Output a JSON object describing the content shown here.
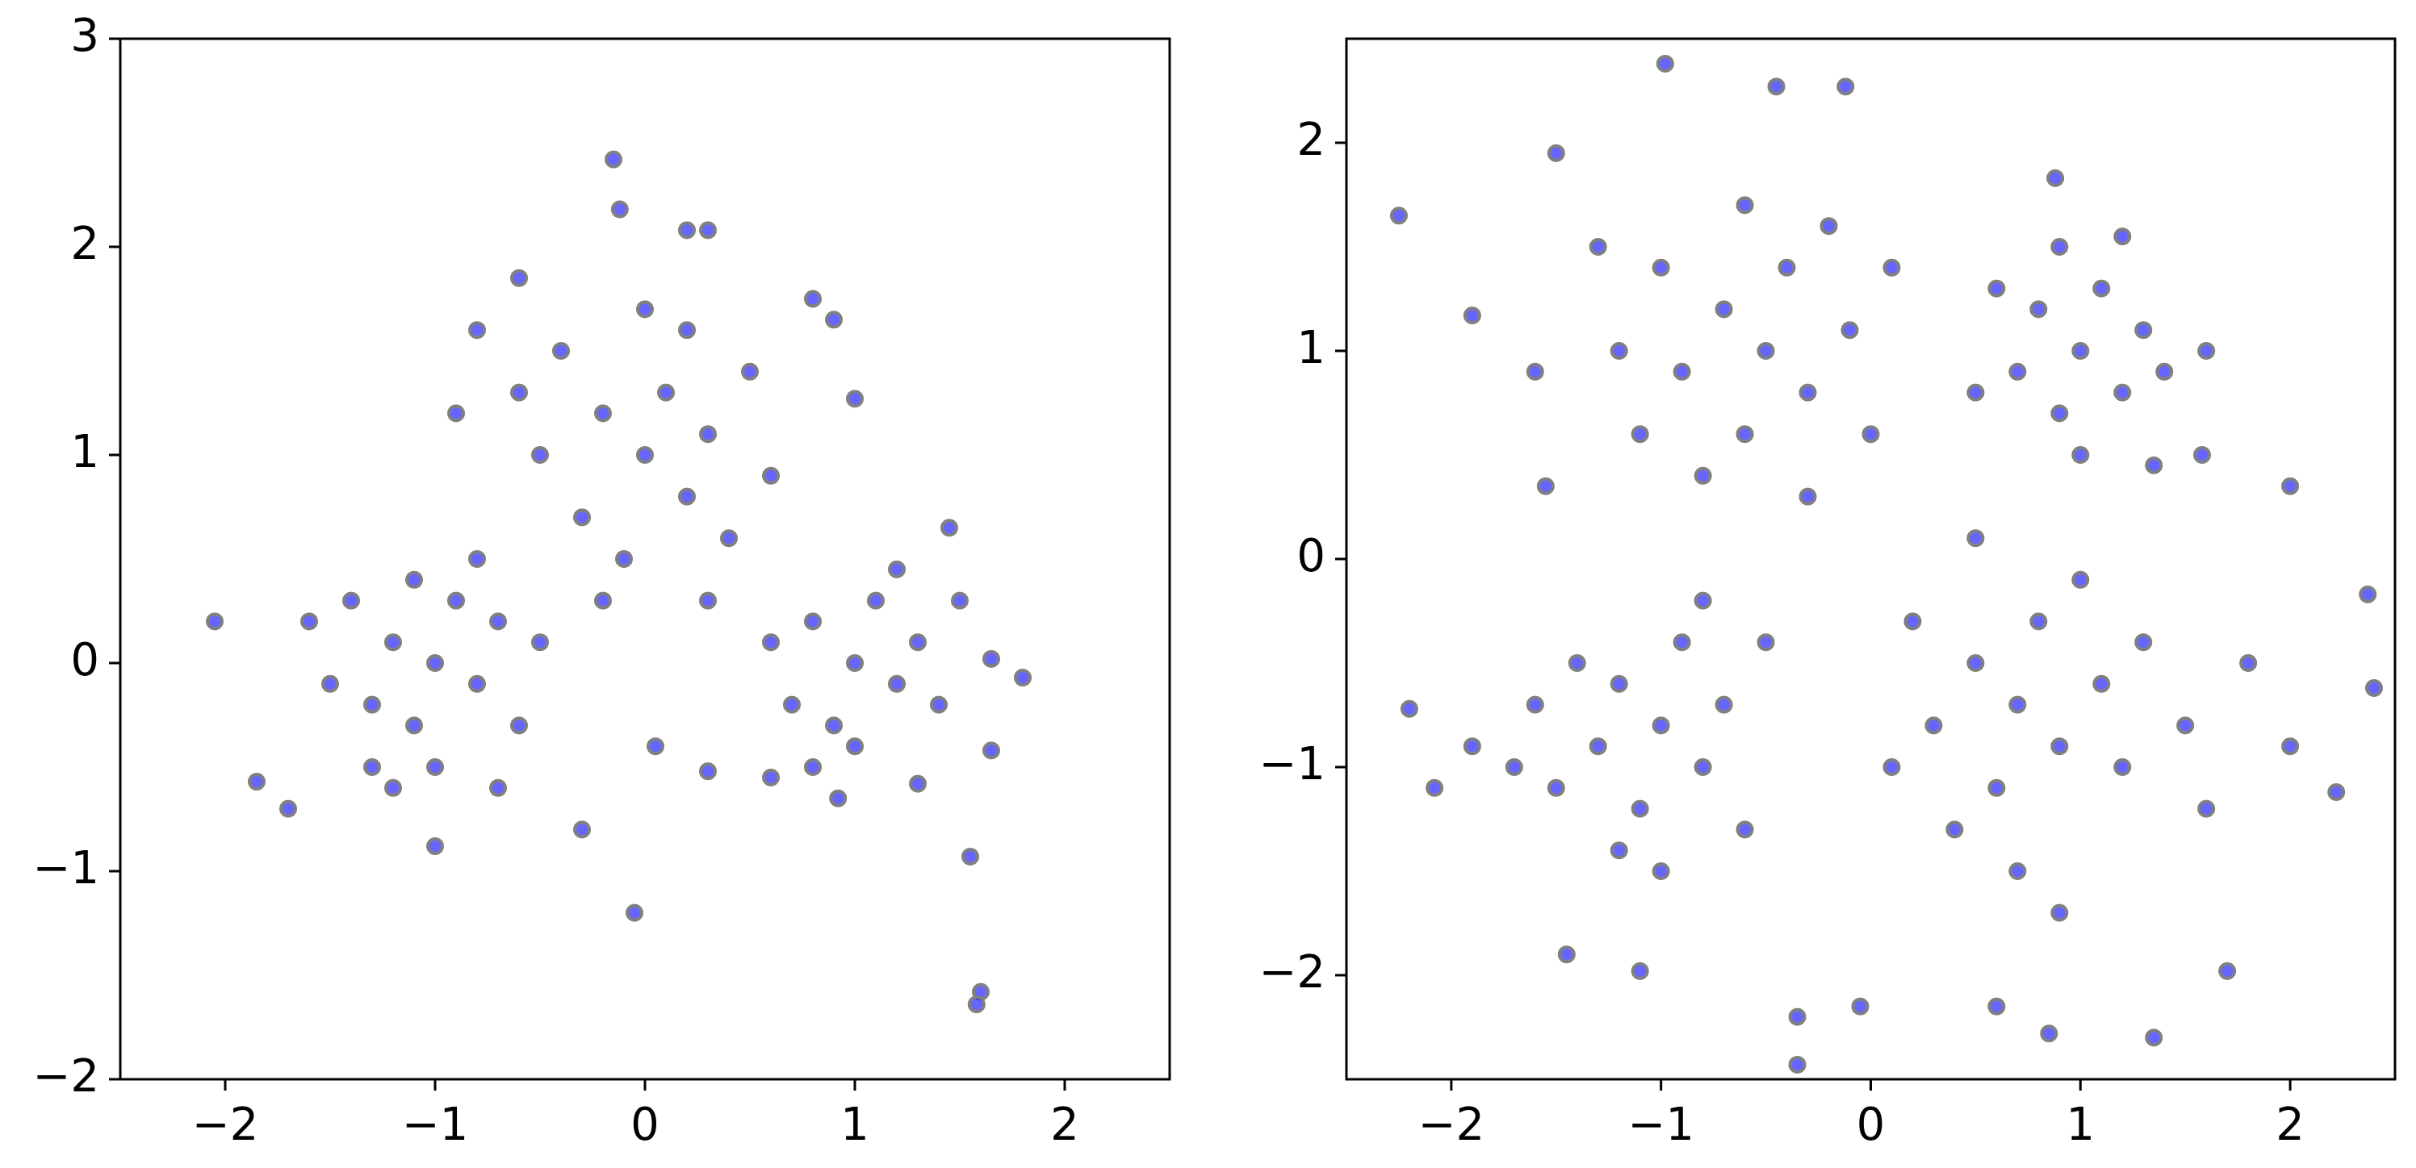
{
  "chart_data": [
    {
      "type": "scatter",
      "color": "#0000ff",
      "edgecolor": "#808080",
      "xlim": [
        -2.5,
        2.5
      ],
      "ylim": [
        -2,
        3
      ],
      "xticks": [
        {
          "value": -2,
          "label": "−2"
        },
        {
          "value": -1,
          "label": "−1"
        },
        0,
        1,
        2
      ],
      "yticks": [
        {
          "value": -2,
          "label": "−2"
        },
        {
          "value": -1,
          "label": "−1"
        },
        0,
        1,
        2,
        3
      ],
      "x": [
        -1.0,
        -1.2,
        -0.8,
        -1.1,
        -0.9,
        -1.3,
        -0.7,
        -1.4,
        -1.0,
        -0.6,
        -1.5,
        -1.2,
        -0.8,
        -1.1,
        -0.5,
        -1.6,
        -1.3,
        -0.7,
        -1.7,
        -1.0,
        -1.85,
        -0.3,
        0,
        -0.2,
        0.2,
        0.1,
        -0.3,
        0.3,
        -0.1,
        0.4,
        -0.5,
        0.5,
        -0.4,
        0.0,
        0.2,
        -0.6,
        0.6,
        -0.2,
        0.3,
        -0.8,
        0.8,
        -0.9,
        0.9,
        -0.12,
        0.2,
        0.3,
        -0.6,
        1.0,
        1,
        0.8,
        1.2,
        0.9,
        1.1,
        0.7,
        1.3,
        1.0,
        0.6,
        1.4,
        1.2,
        0.8,
        1.5,
        0.6,
        1.3,
        0.92,
        1.45,
        1.65,
        -0.05,
        1.6,
        1.58,
        1.55,
        -0.15,
        -2.05,
        1.8,
        1.65,
        0.05,
        0.3
      ],
      "y": [
        0.0,
        0.1,
        -0.1,
        -0.3,
        0.3,
        -0.2,
        0.2,
        0.3,
        -0.5,
        -0.3,
        -0.1,
        -0.6,
        0.5,
        0.4,
        0.1,
        0.2,
        -0.5,
        -0.6,
        -0.7,
        -0.88,
        -0.57,
        -0.8,
        1,
        1.2,
        0.8,
        1.3,
        0.7,
        1.1,
        0.5,
        0.6,
        1.0,
        1.4,
        1.5,
        1.7,
        1.6,
        1.3,
        0.9,
        0.3,
        0.3,
        1.6,
        1.75,
        1.2,
        1.65,
        2.18,
        2.08,
        2.08,
        1.85,
        1.27,
        0,
        0.2,
        -0.1,
        -0.3,
        0.3,
        -0.2,
        0.1,
        -0.4,
        0.1,
        -0.2,
        0.45,
        -0.5,
        0.3,
        -0.55,
        -0.58,
        -0.65,
        0.65,
        0.02,
        -1.2,
        -1.58,
        -1.64,
        -0.93,
        2.42,
        0.2,
        -0.07,
        -0.42,
        -0.4,
        -0.52
      ]
    },
    {
      "type": "scatter",
      "color": "#0000ff",
      "edgecolor": "#808080",
      "xlim": [
        -2.5,
        2.5
      ],
      "ylim": [
        -2.5,
        2.5
      ],
      "xticks": [
        {
          "value": -2,
          "label": "−2"
        },
        {
          "value": -1,
          "label": "−1"
        },
        0,
        1,
        2
      ],
      "yticks": [
        {
          "value": -2,
          "label": "−2"
        },
        {
          "value": -1,
          "label": "−1"
        },
        0,
        1,
        2
      ],
      "x": [
        -0.5,
        -0.7,
        -0.3,
        -0.6,
        -0.4,
        -0.9,
        -0.1,
        -1.0,
        0.0,
        -0.8,
        -0.2,
        -1.2,
        -0.6,
        0.1,
        -1.1,
        -0.3,
        -1.3,
        -1.5,
        -0.98,
        -0.45,
        -0.12,
        -1.6,
        -1.55,
        1,
        0.8,
        1.2,
        0.9,
        1.1,
        0.7,
        1.3,
        1.0,
        1.4,
        0.6,
        1.2,
        0.5,
        1.6,
        0.9,
        1.35,
        0.88,
        1.58,
        -1,
        -1.2,
        -0.8,
        -1.1,
        -0.9,
        -1.3,
        -0.7,
        -1.4,
        -0.6,
        -1.5,
        -1.0,
        -0.5,
        -1.6,
        -1.2,
        -0.8,
        -1.7,
        -1.45,
        -1.1,
        -2.2,
        -2.08,
        -1.9,
        0.7,
        0.5,
        0.9,
        0.6,
        0.8,
        0.3,
        1.1,
        0.4,
        1.2,
        0.2,
        1.3,
        0.7,
        1.0,
        0.1,
        1.5,
        0.5,
        0.9,
        1.6,
        1.8,
        2.0,
        2.22,
        0.6,
        1.7,
        -2.25,
        -1.9,
        -0.35,
        -0.35,
        2.37,
        2.4,
        1.35,
        0.85,
        2.0,
        -0.05
      ],
      "y": [
        1.0,
        1.2,
        0.8,
        0.6,
        1.4,
        0.9,
        1.1,
        1.4,
        0.6,
        0.4,
        1.6,
        1.0,
        1.7,
        1.4,
        0.6,
        0.3,
        1.5,
        1.95,
        2.38,
        2.27,
        2.27,
        0.9,
        0.35,
        1,
        1.2,
        0.8,
        0.7,
        1.3,
        0.9,
        1.1,
        0.5,
        0.9,
        1.3,
        1.55,
        0.8,
        1.0,
        1.5,
        0.45,
        1.83,
        0.5,
        -0.8,
        -0.6,
        -1.0,
        -1.2,
        -0.4,
        -0.9,
        -0.7,
        -0.5,
        -1.3,
        -1.1,
        -1.5,
        -0.4,
        -0.7,
        -1.4,
        -0.2,
        -1.0,
        -1.9,
        -1.98,
        -0.72,
        -1.1,
        -0.9,
        -0.7,
        -0.5,
        -0.9,
        -1.1,
        -0.3,
        -0.8,
        -0.6,
        -1.3,
        -1.0,
        -0.3,
        -0.4,
        -1.5,
        -0.1,
        -1.0,
        -0.8,
        0.1,
        -1.7,
        -1.2,
        -0.5,
        -0.9,
        -1.12,
        -2.15,
        -1.98,
        1.65,
        1.17,
        -2.43,
        -2.2,
        -0.17,
        -0.62,
        -2.3,
        -2.28,
        0.35,
        -2.15
      ]
    }
  ]
}
